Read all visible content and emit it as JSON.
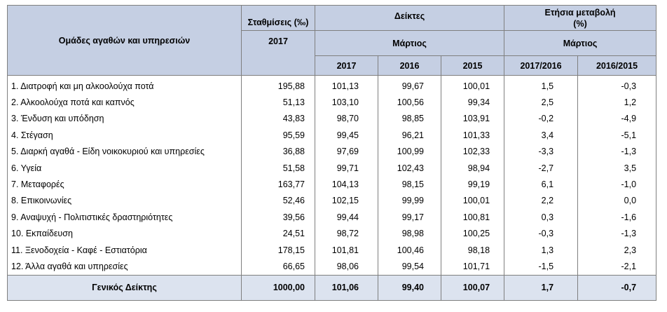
{
  "header": {
    "groups_label": "Ομάδες αγαθών και υπηρεσιών",
    "weights_label": "Σταθμίσεις (‰)",
    "weights_year": "2017",
    "indices_label": "Δείκτες",
    "indices_month": "Μάρτιος",
    "annual_change_label": "Ετήσια μεταβολή (%)",
    "annual_change_month": "Μάρτιος",
    "col_2017": "2017",
    "col_2016": "2016",
    "col_2015": "2015",
    "col_1716": "2017/2016",
    "col_1615": "2016/2015"
  },
  "rows": [
    {
      "name": "1.  Διατροφή και μη αλκοολούχα ποτά",
      "weight": "195,88",
      "i2017": "101,13",
      "i2016": "99,67",
      "i2015": "100,01",
      "c1716": "1,5",
      "c1615": "-0,3"
    },
    {
      "name": "2.  Αλκοολούχα ποτά και καπνός",
      "weight": "51,13",
      "i2017": "103,10",
      "i2016": "100,56",
      "i2015": "99,34",
      "c1716": "2,5",
      "c1615": "1,2"
    },
    {
      "name": "3.  Ένδυση και υπόδηση",
      "weight": "43,83",
      "i2017": "98,70",
      "i2016": "98,85",
      "i2015": "103,91",
      "c1716": "-0,2",
      "c1615": "-4,9"
    },
    {
      "name": "4.  Στέγαση",
      "weight": "95,59",
      "i2017": "99,45",
      "i2016": "96,21",
      "i2015": "101,33",
      "c1716": "3,4",
      "c1615": "-5,1"
    },
    {
      "name": "5.  Διαρκή αγαθά - Είδη  νοικοκυριού και υπηρεσίες",
      "weight": "36,88",
      "i2017": "97,69",
      "i2016": "100,99",
      "i2015": "102,33",
      "c1716": "-3,3",
      "c1615": "-1,3"
    },
    {
      "name": "6.  Υγεία",
      "weight": "51,58",
      "i2017": "99,71",
      "i2016": "102,43",
      "i2015": "98,94",
      "c1716": "-2,7",
      "c1615": "3,5"
    },
    {
      "name": "7.  Μεταφορές",
      "weight": "163,77",
      "i2017": "104,13",
      "i2016": "98,15",
      "i2015": "99,19",
      "c1716": "6,1",
      "c1615": "-1,0"
    },
    {
      "name": "8.  Επικοινωνίες",
      "weight": "52,46",
      "i2017": "102,15",
      "i2016": "99,99",
      "i2015": "100,01",
      "c1716": "2,2",
      "c1615": "0,0"
    },
    {
      "name": "9.  Αναψυχή - Πολιτιστικές δραστηριότητες",
      "weight": "39,56",
      "i2017": "99,44",
      "i2016": "99,17",
      "i2015": "100,81",
      "c1716": "0,3",
      "c1615": "-1,6"
    },
    {
      "name": "10. Εκπαίδευση",
      "weight": "24,51",
      "i2017": "98,72",
      "i2016": "98,98",
      "i2015": "100,25",
      "c1716": "-0,3",
      "c1615": "-1,3"
    },
    {
      "name": "11. Ξενοδοχεία - Καφέ - Εστιατόρια",
      "weight": "178,15",
      "i2017": "101,81",
      "i2016": "100,46",
      "i2015": "98,18",
      "c1716": "1,3",
      "c1615": "2,3"
    },
    {
      "name": "12. Άλλα αγαθά και υπηρεσίες",
      "weight": "66,65",
      "i2017": "98,06",
      "i2016": "99,54",
      "i2015": "101,71",
      "c1716": "-1,5",
      "c1615": "-2,1"
    }
  ],
  "total": {
    "name": "Γενικός Δείκτης",
    "weight": "1000,00",
    "i2017": "101,06",
    "i2016": "99,40",
    "i2015": "100,07",
    "c1716": "1,7",
    "c1615": "-0,7"
  },
  "colors": {
    "header_bg": "#c5cfe3",
    "total_bg": "#dce3ef",
    "border": "#7f7f7f"
  }
}
